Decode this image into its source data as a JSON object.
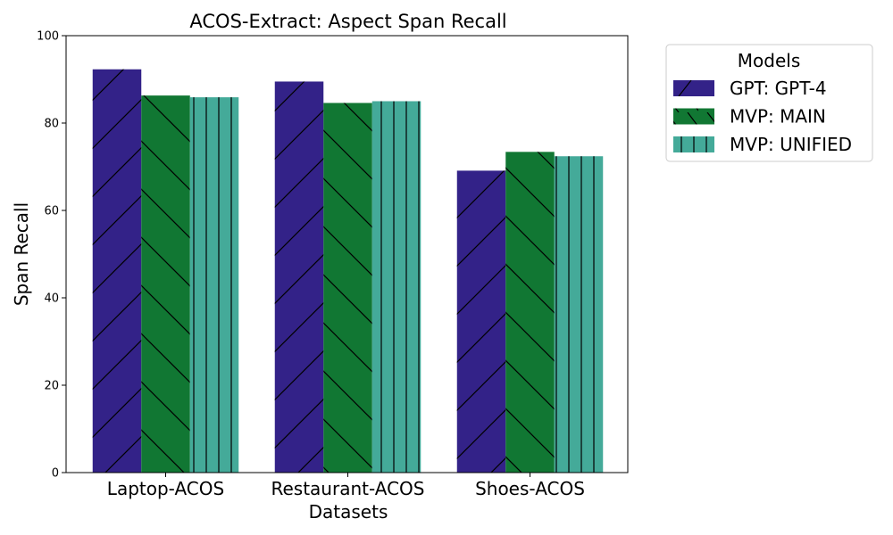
{
  "chart_data": {
    "type": "bar",
    "title": "ACOS-Extract: Aspect Span Recall",
    "xlabel": "Datasets",
    "ylabel": "Span Recall",
    "ylim": [
      0,
      100
    ],
    "yticks": [
      0,
      20,
      40,
      60,
      80,
      100
    ],
    "categories": [
      "Laptop-ACOS",
      "Restaurant-ACOS",
      "Shoes-ACOS"
    ],
    "series": [
      {
        "name": "GPT: GPT-4",
        "values": [
          92.3,
          89.5,
          69.1
        ],
        "color": "#332288",
        "hatch": "forward-diagonal"
      },
      {
        "name": "MVP: MAIN",
        "values": [
          86.3,
          84.6,
          73.4
        ],
        "color": "#117733",
        "hatch": "back-diagonal"
      },
      {
        "name": "MVP: UNIFIED",
        "values": [
          85.9,
          85.0,
          72.4
        ],
        "color": "#44AA99",
        "hatch": "vertical"
      }
    ],
    "legend": {
      "title": "Models",
      "position": "outside-right-top"
    },
    "grid": false
  }
}
